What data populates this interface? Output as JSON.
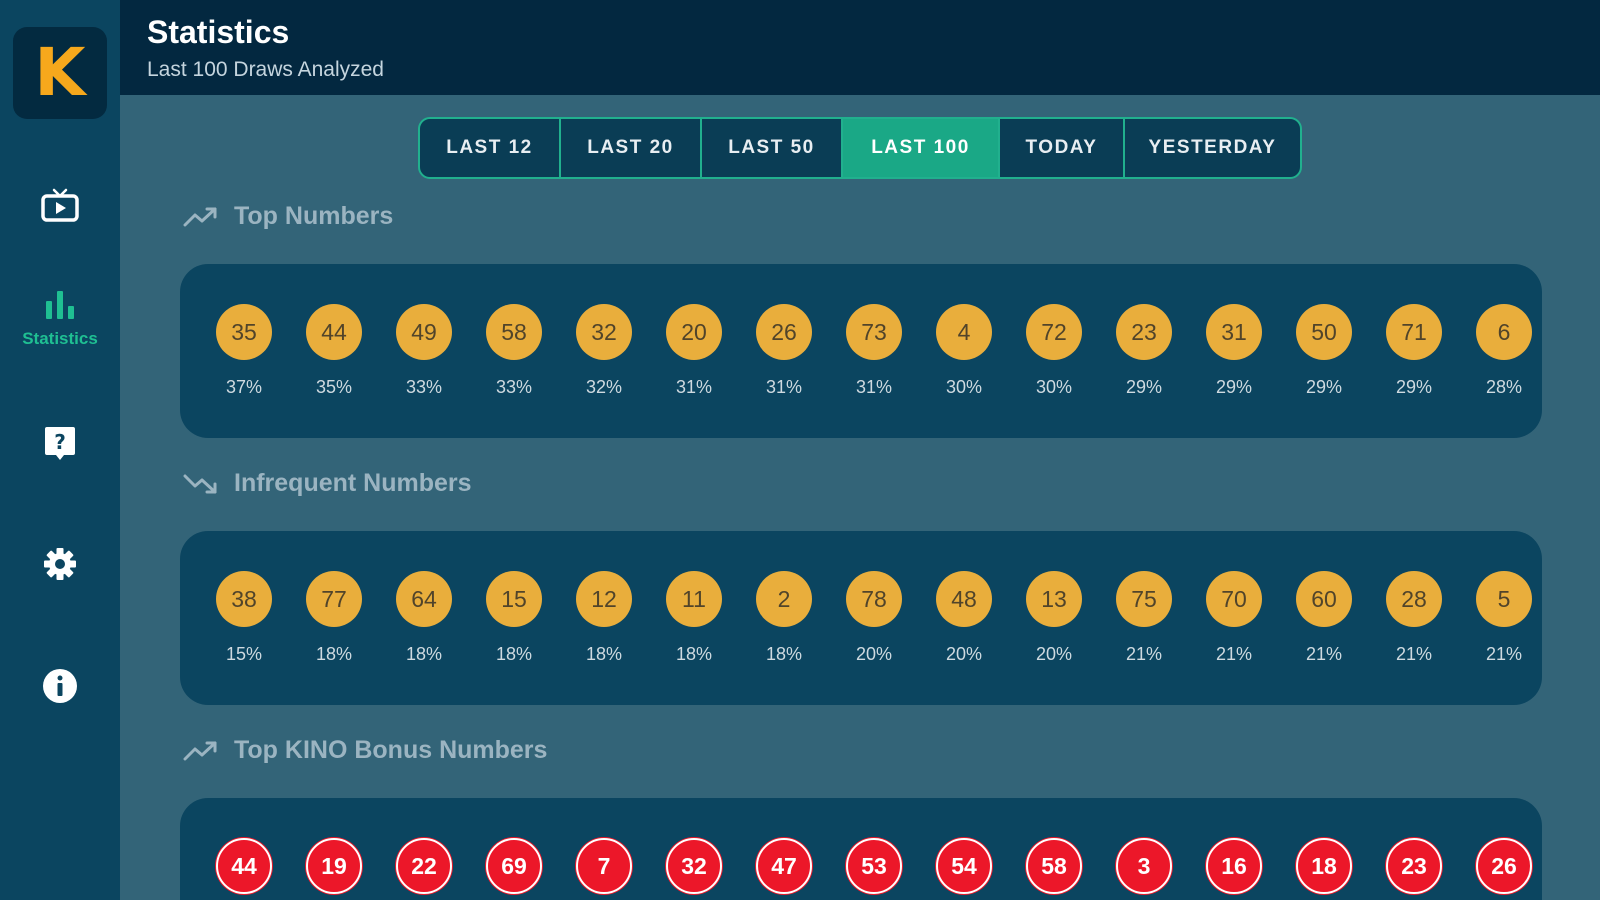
{
  "app": {
    "logo_letter": "K"
  },
  "header": {
    "title": "Statistics",
    "subtitle": "Last 100 Draws Analyzed"
  },
  "sidebar": {
    "items": [
      {
        "name": "live-tv",
        "icon": "tv-play-icon",
        "label": ""
      },
      {
        "name": "statistics",
        "icon": "bar-chart-icon",
        "label": "Statistics",
        "active": true
      },
      {
        "name": "help",
        "icon": "help-icon",
        "label": ""
      },
      {
        "name": "settings",
        "icon": "gear-icon",
        "label": ""
      },
      {
        "name": "info",
        "icon": "info-icon",
        "label": ""
      }
    ]
  },
  "tabs": [
    {
      "label": "LAST 12",
      "active": false
    },
    {
      "label": "LAST 20",
      "active": false
    },
    {
      "label": "LAST 50",
      "active": false
    },
    {
      "label": "LAST 100",
      "active": true
    },
    {
      "label": "TODAY",
      "active": false
    },
    {
      "label": "YESTERDAY",
      "active": false
    }
  ],
  "sections": {
    "top": {
      "title": "Top Numbers",
      "icon": "trending-up-icon",
      "balls": [
        {
          "n": "35",
          "p": "37%"
        },
        {
          "n": "44",
          "p": "35%"
        },
        {
          "n": "49",
          "p": "33%"
        },
        {
          "n": "58",
          "p": "33%"
        },
        {
          "n": "32",
          "p": "32%"
        },
        {
          "n": "20",
          "p": "31%"
        },
        {
          "n": "26",
          "p": "31%"
        },
        {
          "n": "73",
          "p": "31%"
        },
        {
          "n": "4",
          "p": "30%"
        },
        {
          "n": "72",
          "p": "30%"
        },
        {
          "n": "23",
          "p": "29%"
        },
        {
          "n": "31",
          "p": "29%"
        },
        {
          "n": "50",
          "p": "29%"
        },
        {
          "n": "71",
          "p": "29%"
        },
        {
          "n": "6",
          "p": "28%"
        }
      ]
    },
    "infrequent": {
      "title": "Infrequent Numbers",
      "icon": "trending-down-icon",
      "balls": [
        {
          "n": "38",
          "p": "15%"
        },
        {
          "n": "77",
          "p": "18%"
        },
        {
          "n": "64",
          "p": "18%"
        },
        {
          "n": "15",
          "p": "18%"
        },
        {
          "n": "12",
          "p": "18%"
        },
        {
          "n": "11",
          "p": "18%"
        },
        {
          "n": "2",
          "p": "18%"
        },
        {
          "n": "78",
          "p": "20%"
        },
        {
          "n": "48",
          "p": "20%"
        },
        {
          "n": "13",
          "p": "20%"
        },
        {
          "n": "75",
          "p": "21%"
        },
        {
          "n": "70",
          "p": "21%"
        },
        {
          "n": "60",
          "p": "21%"
        },
        {
          "n": "28",
          "p": "21%"
        },
        {
          "n": "5",
          "p": "21%"
        }
      ]
    },
    "bonus": {
      "title": "Top KINO Bonus Numbers",
      "icon": "trending-up-icon",
      "balls": [
        {
          "n": "44"
        },
        {
          "n": "19"
        },
        {
          "n": "22"
        },
        {
          "n": "69"
        },
        {
          "n": "7"
        },
        {
          "n": "32"
        },
        {
          "n": "47"
        },
        {
          "n": "53"
        },
        {
          "n": "54"
        },
        {
          "n": "58"
        },
        {
          "n": "3"
        },
        {
          "n": "16"
        },
        {
          "n": "18"
        },
        {
          "n": "23"
        },
        {
          "n": "26"
        }
      ]
    }
  },
  "colors": {
    "accent": "#1aa886",
    "ball_gold": "#e9ae3c",
    "ball_red": "#ec1729",
    "logo": "#f6a81c"
  }
}
